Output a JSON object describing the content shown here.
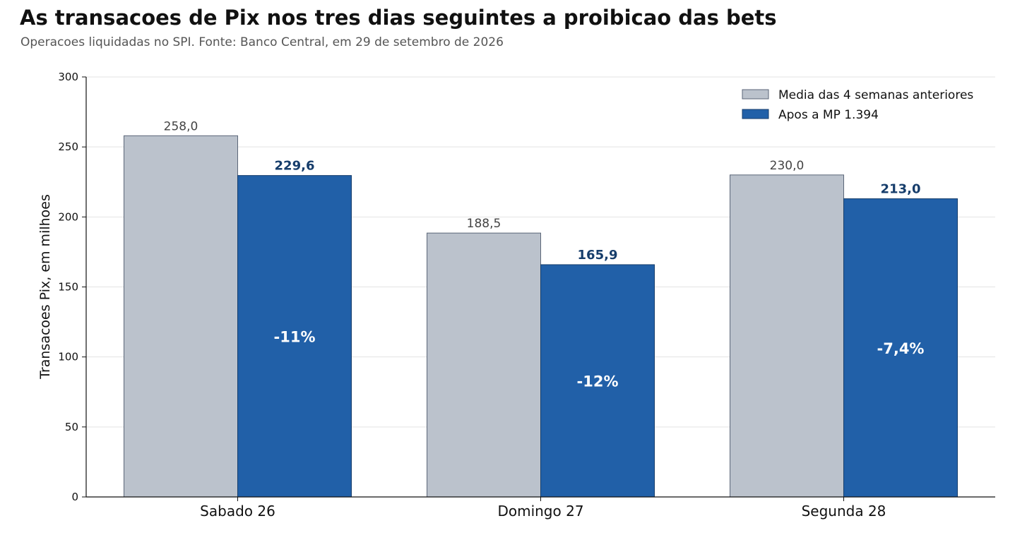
{
  "colors": {
    "baseline": "#bbc2cc",
    "baseline_edge": "#5b6678",
    "after": "#2160a8",
    "after_edge": "#163d6b",
    "grid": "#e3e3e3"
  },
  "chart_data": {
    "type": "bar",
    "title": "As transacoes de Pix nos tres dias seguintes a proibicao das bets",
    "subtitle": "Operacoes liquidadas no SPI. Fonte: Banco Central, em 29 de setembro de 2026",
    "xlabel": "",
    "ylabel": "Transacoes Pix, em milhoes",
    "ylim": [
      0,
      300
    ],
    "yticks": [
      0,
      50,
      100,
      150,
      200,
      250,
      300
    ],
    "grid": true,
    "legend_position": "top-right",
    "categories": [
      "Sabado 26",
      "Domingo 27",
      "Segunda 28"
    ],
    "series": [
      {
        "name": "Media das 4 semanas anteriores",
        "values": [
          258.0,
          188.5,
          230.0
        ],
        "labels": [
          "258,0",
          "188,5",
          "230,0"
        ]
      },
      {
        "name": "Apos a MP 1.394",
        "values": [
          229.6,
          165.9,
          213.0
        ],
        "labels": [
          "229,6",
          "165,9",
          "213,0"
        ]
      }
    ],
    "change_labels": [
      "-11%",
      "-12%",
      "-7,4%"
    ]
  }
}
